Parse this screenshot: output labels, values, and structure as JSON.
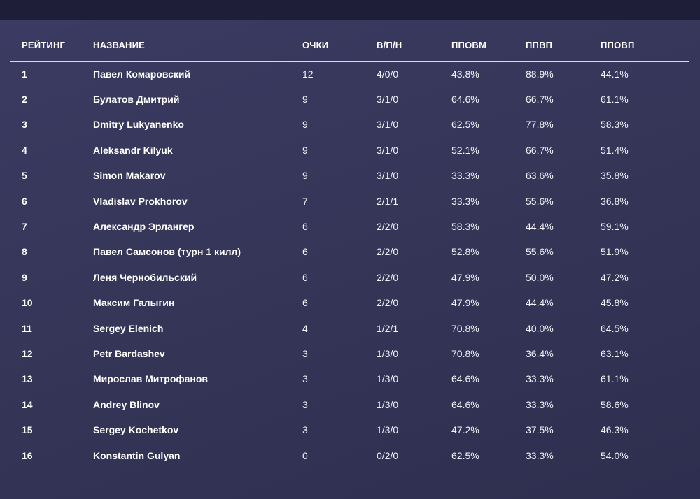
{
  "columns": {
    "rank": "РЕЙТИНГ",
    "name": "НАЗВАНИЕ",
    "points": "ОЧКИ",
    "wdl": "В/П/Н",
    "pct1": "ППОВМ",
    "pct2": "ППВП",
    "pct3": "ППОВП"
  },
  "rows": [
    {
      "rank": "1",
      "name": "Павел Комаровский",
      "points": "12",
      "wdl": "4/0/0",
      "pct1": "43.8%",
      "pct2": "88.9%",
      "pct3": "44.1%"
    },
    {
      "rank": "2",
      "name": "Булатов Дмитрий",
      "points": "9",
      "wdl": "3/1/0",
      "pct1": "64.6%",
      "pct2": "66.7%",
      "pct3": "61.1%"
    },
    {
      "rank": "3",
      "name": "Dmitry Lukyanenko",
      "points": "9",
      "wdl": "3/1/0",
      "pct1": "62.5%",
      "pct2": "77.8%",
      "pct3": "58.3%"
    },
    {
      "rank": "4",
      "name": "Aleksandr Kilyuk",
      "points": "9",
      "wdl": "3/1/0",
      "pct1": "52.1%",
      "pct2": "66.7%",
      "pct3": "51.4%"
    },
    {
      "rank": "5",
      "name": "Simon Makarov",
      "points": "9",
      "wdl": "3/1/0",
      "pct1": "33.3%",
      "pct2": "63.6%",
      "pct3": "35.8%"
    },
    {
      "rank": "6",
      "name": "Vladislav Prokhorov",
      "points": "7",
      "wdl": "2/1/1",
      "pct1": "33.3%",
      "pct2": "55.6%",
      "pct3": "36.8%"
    },
    {
      "rank": "7",
      "name": "Александр Эрлангер",
      "points": "6",
      "wdl": "2/2/0",
      "pct1": "58.3%",
      "pct2": "44.4%",
      "pct3": "59.1%"
    },
    {
      "rank": "8",
      "name": "Павел Самсонов (турн 1 килл)",
      "points": "6",
      "wdl": "2/2/0",
      "pct1": "52.8%",
      "pct2": "55.6%",
      "pct3": "51.9%"
    },
    {
      "rank": "9",
      "name": "Леня Чернобильский",
      "points": "6",
      "wdl": "2/2/0",
      "pct1": "47.9%",
      "pct2": "50.0%",
      "pct3": "47.2%"
    },
    {
      "rank": "10",
      "name": "Максим Галыгин",
      "points": "6",
      "wdl": "2/2/0",
      "pct1": "47.9%",
      "pct2": "44.4%",
      "pct3": "45.8%"
    },
    {
      "rank": "11",
      "name": "Sergey Elenich",
      "points": "4",
      "wdl": "1/2/1",
      "pct1": "70.8%",
      "pct2": "40.0%",
      "pct3": "64.5%"
    },
    {
      "rank": "12",
      "name": "Petr Bardashev",
      "points": "3",
      "wdl": "1/3/0",
      "pct1": "70.8%",
      "pct2": "36.4%",
      "pct3": "63.1%"
    },
    {
      "rank": "13",
      "name": "Мирослав Митрофанов",
      "points": "3",
      "wdl": "1/3/0",
      "pct1": "64.6%",
      "pct2": "33.3%",
      "pct3": "61.1%"
    },
    {
      "rank": "14",
      "name": "Andrey Blinov",
      "points": "3",
      "wdl": "1/3/0",
      "pct1": "64.6%",
      "pct2": "33.3%",
      "pct3": "58.6%"
    },
    {
      "rank": "15",
      "name": "Sergey Kochetkov",
      "points": "3",
      "wdl": "1/3/0",
      "pct1": "47.2%",
      "pct2": "37.5%",
      "pct3": "46.3%"
    },
    {
      "rank": "16",
      "name": "Konstantin Gulyan",
      "points": "0",
      "wdl": "0/2/0",
      "pct1": "62.5%",
      "pct2": "33.3%",
      "pct3": "54.0%"
    }
  ],
  "colors": {
    "background": "#363659",
    "top_band": "#1e1e38",
    "text": "#ffffff",
    "header_rule": "#d8d8e6"
  }
}
